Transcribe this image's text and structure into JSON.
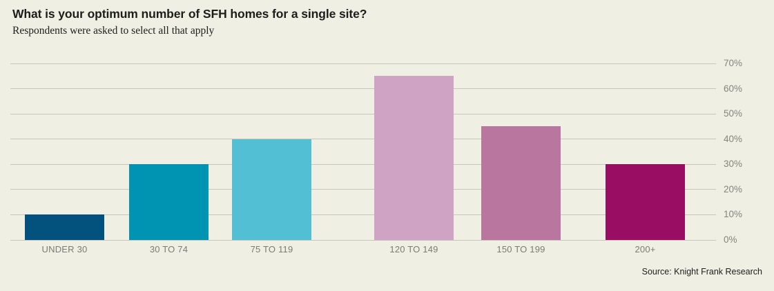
{
  "header": {
    "title": "What is your optimum number of SFH homes for a single site?",
    "subtitle": "Respondents were asked to select all that apply"
  },
  "chart_data": {
    "type": "bar",
    "categories": [
      "UNDER 30",
      "30 TO 74",
      "75 TO 119",
      "120 TO 149",
      "150 TO 199",
      "200+"
    ],
    "values": [
      10,
      30,
      40,
      65,
      45,
      30
    ],
    "bar_colors": [
      "#03527D",
      "#0093B2",
      "#52BFD5",
      "#CFA3C3",
      "#B9779F",
      "#990E62"
    ],
    "title": "What is your optimum number of SFH homes for a single site?",
    "subtitle": "Respondents were asked to select all that apply",
    "xlabel": "",
    "ylabel": "",
    "ylim": [
      0,
      70
    ],
    "ytick_step": 10,
    "yticks": [
      "0%",
      "10%",
      "20%",
      "30%",
      "40%",
      "50%",
      "60%",
      "70%"
    ],
    "grid": true,
    "legend": "none",
    "value_axis_side": "right"
  },
  "footer": {
    "source": "Source: Knight Frank Research"
  },
  "colors": {
    "background": "#EFEFE3",
    "gridline": "#C6C6BC",
    "axis_text": "#84847C",
    "category_text": "#7B7B73",
    "title_text": "#1D1D1B"
  }
}
